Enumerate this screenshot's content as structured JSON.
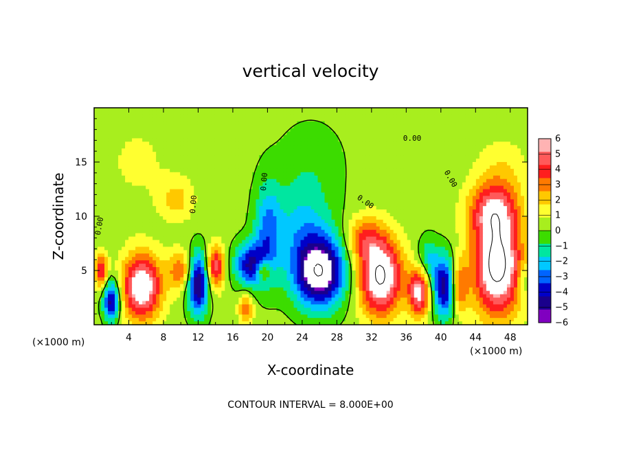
{
  "chart_data": {
    "type": "heatmap",
    "title": "vertical velocity",
    "xlabel": "X-coordinate",
    "ylabel": "Z-coordinate",
    "x_unit_left": "(×1000 m)",
    "x_unit_right": "(×1000 m)",
    "xlim": [
      0,
      50
    ],
    "ylim": [
      0,
      20
    ],
    "x_ticks": [
      4,
      8,
      12,
      16,
      20,
      24,
      28,
      32,
      36,
      40,
      44,
      48
    ],
    "y_ticks": [
      5,
      10,
      15
    ],
    "colorbar": {
      "ticks": [
        6,
        5,
        4,
        3,
        2,
        1,
        0,
        -1,
        -2,
        -3,
        -4,
        -5,
        -6
      ],
      "colors": [
        "#ffb3b3",
        "#ff5a5a",
        "#ff1e1e",
        "#ff7a00",
        "#ffc800",
        "#ffff30",
        "#a8ee1e",
        "#3cdc00",
        "#00e6a0",
        "#00c8ff",
        "#0064ff",
        "#0000c8",
        "#1a008c",
        "#8000c0"
      ]
    },
    "contour_labels": [
      "0.00",
      "0.00",
      "0.00",
      "0.00",
      "0.00",
      "0.00"
    ],
    "contour_interval_text": "CONTOUR INTERVAL = 8.000E+00",
    "grid": false,
    "background_value": 0.4,
    "features": [
      {
        "x": 0.8,
        "z": 5.0,
        "w": 5.0,
        "rx": 0.7,
        "rz": 1.6
      },
      {
        "x": 5.5,
        "z": 3.5,
        "w": 7.5,
        "rx": 2.2,
        "rz": 3.0
      },
      {
        "x": 2.0,
        "z": 2.2,
        "w": -6.5,
        "rx": 0.9,
        "rz": 1.8
      },
      {
        "x": 12.0,
        "z": 3.8,
        "w": -7.0,
        "rx": 1.2,
        "rz": 2.8
      },
      {
        "x": 14.0,
        "z": 5.3,
        "w": 5.5,
        "rx": 1.0,
        "rz": 2.0
      },
      {
        "x": 10.0,
        "z": 5.0,
        "w": 3.5,
        "rx": 1.5,
        "rz": 1.8
      },
      {
        "x": 9.5,
        "z": 11.5,
        "w": 2.0,
        "rx": 2.0,
        "rz": 2.0
      },
      {
        "x": 17.5,
        "z": 1.5,
        "w": 3.5,
        "rx": 0.8,
        "rz": 1.5
      },
      {
        "x": 18.0,
        "z": 5.5,
        "w": -5.5,
        "rx": 1.8,
        "rz": 2.0
      },
      {
        "x": 19.5,
        "z": 5.0,
        "w": 4.0,
        "rx": 0.8,
        "rz": 0.9
      },
      {
        "x": 20.0,
        "z": 8.5,
        "w": -3.5,
        "rx": 1.5,
        "rz": 4.5
      },
      {
        "x": 26.0,
        "z": 4.8,
        "w": -8.0,
        "rx": 3.0,
        "rz": 3.2
      },
      {
        "x": 24.0,
        "z": 9.0,
        "w": -2.5,
        "rx": 3.5,
        "rz": 4.0
      },
      {
        "x": 25.0,
        "z": 15.0,
        "w": -1.0,
        "rx": 4.0,
        "rz": 4.0
      },
      {
        "x": 33.0,
        "z": 4.5,
        "w": 8.0,
        "rx": 2.5,
        "rz": 3.6
      },
      {
        "x": 31.0,
        "z": 8.0,
        "w": 3.0,
        "rx": 2.0,
        "rz": 2.0
      },
      {
        "x": 37.5,
        "z": 3.0,
        "w": 6.5,
        "rx": 1.2,
        "rz": 2.2
      },
      {
        "x": 38.5,
        "z": 6.0,
        "w": -2.5,
        "rx": 1.2,
        "rz": 2.0
      },
      {
        "x": 40.5,
        "z": 3.5,
        "w": -6.5,
        "rx": 1.4,
        "rz": 2.8
      },
      {
        "x": 42.0,
        "z": 3.5,
        "w": 4.5,
        "rx": 1.0,
        "rz": 2.5
      },
      {
        "x": 46.5,
        "z": 5.5,
        "w": 8.5,
        "rx": 2.8,
        "rz": 4.6
      },
      {
        "x": 46.0,
        "z": 10.5,
        "w": 4.5,
        "rx": 2.8,
        "rz": 2.4
      },
      {
        "x": 47.0,
        "z": 14.0,
        "w": 1.5,
        "rx": 3.0,
        "rz": 3.0
      },
      {
        "x": 5.0,
        "z": 15.0,
        "w": 0.8,
        "rx": 4.0,
        "rz": 4.0
      },
      {
        "x": 49.5,
        "z": 4.0,
        "w": -2.0,
        "rx": 0.6,
        "rz": 1.5
      }
    ]
  }
}
